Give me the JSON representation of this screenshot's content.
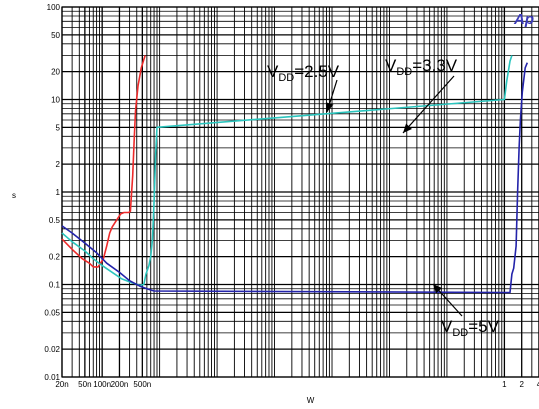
{
  "chart_data": {
    "type": "line",
    "title": "",
    "xlabel": "W",
    "ylabel": "s",
    "x_scale": "log",
    "y_scale": "log",
    "xlim": [
      2e-08,
      4
    ],
    "ylim": [
      0.01,
      100
    ],
    "grid": true,
    "brand_text": "Ap",
    "x_ticks": [
      {
        "value": 2e-08,
        "label": "20n"
      },
      {
        "value": 5e-08,
        "label": "50n"
      },
      {
        "value": 1e-07,
        "label": "100n"
      },
      {
        "value": 2e-07,
        "label": "200n"
      },
      {
        "value": 5e-07,
        "label": "500n"
      },
      {
        "value": 1,
        "label": "1"
      },
      {
        "value": 2,
        "label": "2"
      },
      {
        "value": 4,
        "label": "4"
      }
    ],
    "y_ticks": [
      {
        "value": 100,
        "label": "100"
      },
      {
        "value": 50,
        "label": "50"
      },
      {
        "value": 20,
        "label": "20"
      },
      {
        "value": 10,
        "label": "10"
      },
      {
        "value": 5,
        "label": "5"
      },
      {
        "value": 2,
        "label": "2"
      },
      {
        "value": 1,
        "label": "1"
      },
      {
        "value": 0.5,
        "label": "0.5"
      },
      {
        "value": 0.2,
        "label": "0.2"
      },
      {
        "value": 0.1,
        "label": "0.1"
      },
      {
        "value": 0.05,
        "label": "0.05"
      },
      {
        "value": 0.02,
        "label": "0.02"
      },
      {
        "value": 0.01,
        "label": "0.01"
      }
    ],
    "series": [
      {
        "color": "#ee2a2a",
        "points": [
          [
            2e-08,
            0.31
          ],
          [
            3e-08,
            0.24
          ],
          [
            4.5e-08,
            0.19
          ],
          [
            6e-08,
            0.17
          ],
          [
            7e-08,
            0.155
          ],
          [
            8.5e-08,
            0.155
          ],
          [
            1.05e-07,
            0.19
          ],
          [
            1.2e-07,
            0.26
          ],
          [
            1.35e-07,
            0.36
          ],
          [
            1.5e-07,
            0.42
          ],
          [
            1.8e-07,
            0.5
          ],
          [
            2.1e-07,
            0.58
          ],
          [
            2.4e-07,
            0.6
          ],
          [
            2.9e-07,
            0.6
          ],
          [
            3.1e-07,
            0.62
          ],
          [
            3.4e-07,
            1.5
          ],
          [
            3.6e-07,
            3.5
          ],
          [
            3.8e-07,
            7.5
          ],
          [
            4.2e-07,
            14
          ],
          [
            4.8e-07,
            22
          ],
          [
            5.3e-07,
            27
          ],
          [
            5.6e-07,
            30
          ]
        ]
      },
      {
        "color": "#2bc5be",
        "points": [
          [
            2e-08,
            0.36
          ],
          [
            3e-08,
            0.29
          ],
          [
            5e-08,
            0.23
          ],
          [
            7e-08,
            0.19
          ],
          [
            1e-07,
            0.16
          ],
          [
            1.5e-07,
            0.135
          ],
          [
            2.2e-07,
            0.115
          ],
          [
            3.2e-07,
            0.105
          ],
          [
            4.5e-07,
            0.098
          ],
          [
            5.3e-07,
            0.1
          ],
          [
            5.8e-07,
            0.13
          ],
          [
            6.5e-07,
            0.16
          ],
          [
            7e-07,
            0.2
          ],
          [
            7.5e-07,
            0.3
          ],
          [
            8e-07,
            0.8
          ],
          [
            8.5e-07,
            2.5
          ],
          [
            9e-07,
            5
          ],
          [
            1,
            10
          ],
          [
            1.1,
            16
          ],
          [
            1.25,
            26
          ],
          [
            1.35,
            30
          ]
        ]
      },
      {
        "color": "#2323aa",
        "points": [
          [
            2e-08,
            0.43
          ],
          [
            3e-08,
            0.36
          ],
          [
            5e-08,
            0.28
          ],
          [
            8e-08,
            0.22
          ],
          [
            1.2e-07,
            0.17
          ],
          [
            2e-07,
            0.135
          ],
          [
            3e-07,
            0.11
          ],
          [
            4.5e-07,
            0.096
          ],
          [
            6e-07,
            0.09
          ],
          [
            8e-07,
            0.085
          ],
          [
            1.1,
            0.082
          ],
          [
            1.25,
            0.082
          ],
          [
            1.35,
            0.13
          ],
          [
            1.45,
            0.15
          ],
          [
            1.6,
            0.26
          ],
          [
            1.7,
            1.0
          ],
          [
            1.8,
            3.0
          ],
          [
            1.9,
            6.0
          ],
          [
            2.05,
            12
          ],
          [
            2.3,
            22
          ],
          [
            2.5,
            25
          ]
        ]
      }
    ],
    "annotations": [
      {
        "main": "V",
        "sub": "DD",
        "tail": "=2.5V"
      },
      {
        "main": "V",
        "sub": "DD",
        "tail": "=3.3V"
      },
      {
        "main": "V",
        "sub": "DD",
        "tail": "=5V"
      }
    ]
  }
}
